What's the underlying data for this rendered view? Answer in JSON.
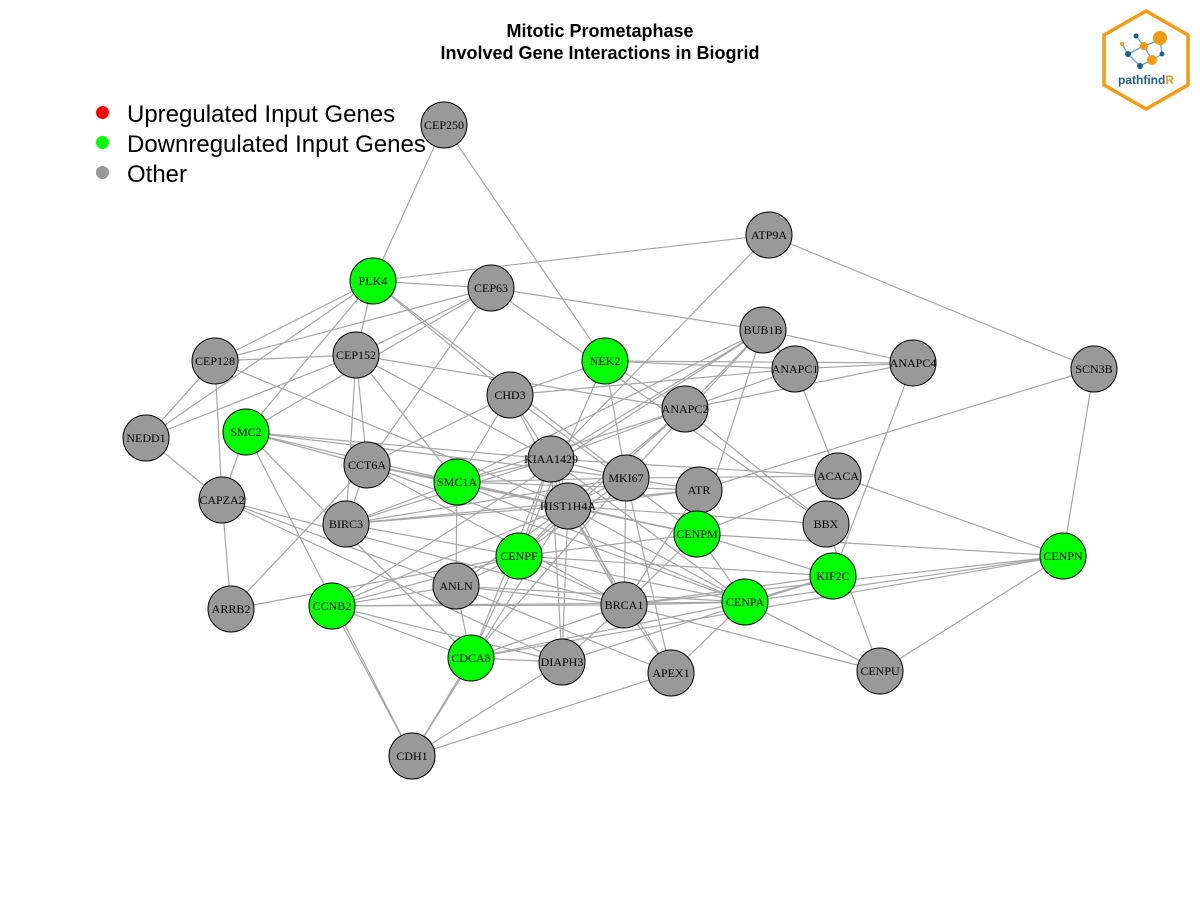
{
  "title": {
    "line1": "Mitotic Prometaphase",
    "line2": "Involved Gene Interactions in Biogrid"
  },
  "legend": [
    {
      "label": "Upregulated Input Genes",
      "color": "#ff0000"
    },
    {
      "label": "Downregulated Input Genes",
      "color": "#00ff00"
    },
    {
      "label": "Other",
      "color": "#999999"
    }
  ],
  "logo": {
    "text_main": "pathfind",
    "text_accent": "R",
    "border_color": "#f39c12",
    "accent_color": "#f39c12",
    "text_color": "#1f5f8b"
  },
  "colors": {
    "edge": "#a6a6a6",
    "other": "#999999",
    "down": "#00ff00",
    "up": "#ff0000"
  },
  "nodes": [
    {
      "id": "CEP250",
      "status": "other"
    },
    {
      "id": "ATP9A",
      "status": "other"
    },
    {
      "id": "PLK4",
      "status": "down"
    },
    {
      "id": "CEP63",
      "status": "other"
    },
    {
      "id": "BUB1B",
      "status": "other"
    },
    {
      "id": "NEK2",
      "status": "down"
    },
    {
      "id": "ANAPC1",
      "status": "other"
    },
    {
      "id": "ANAPC4",
      "status": "other"
    },
    {
      "id": "SCN3B",
      "status": "other"
    },
    {
      "id": "CEP128",
      "status": "other"
    },
    {
      "id": "CEP152",
      "status": "other"
    },
    {
      "id": "CHD3",
      "status": "other"
    },
    {
      "id": "ANAPC2",
      "status": "other"
    },
    {
      "id": "NEDD1",
      "status": "other"
    },
    {
      "id": "SMC2",
      "status": "down"
    },
    {
      "id": "KIAA1429",
      "status": "other"
    },
    {
      "id": "CCT6A",
      "status": "other"
    },
    {
      "id": "SMC1A",
      "status": "down"
    },
    {
      "id": "MKI67",
      "status": "other"
    },
    {
      "id": "ACACA",
      "status": "other"
    },
    {
      "id": "ATR",
      "status": "other"
    },
    {
      "id": "CAPZA2",
      "status": "other"
    },
    {
      "id": "HIST1H4A",
      "status": "other"
    },
    {
      "id": "BIRC3",
      "status": "other"
    },
    {
      "id": "BBX",
      "status": "other"
    },
    {
      "id": "CENPM",
      "status": "down"
    },
    {
      "id": "CENPF",
      "status": "down"
    },
    {
      "id": "CENPN",
      "status": "down"
    },
    {
      "id": "KIF2C",
      "status": "down"
    },
    {
      "id": "ANLN",
      "status": "other"
    },
    {
      "id": "CENPA",
      "status": "down"
    },
    {
      "id": "ARRB2",
      "status": "other"
    },
    {
      "id": "CCNB2",
      "status": "down"
    },
    {
      "id": "BRCA1",
      "status": "other"
    },
    {
      "id": "CDCA8",
      "status": "down"
    },
    {
      "id": "DIAPH3",
      "status": "other"
    },
    {
      "id": "APEX1",
      "status": "other"
    },
    {
      "id": "CENPU",
      "status": "other"
    },
    {
      "id": "CDH1",
      "status": "other"
    }
  ],
  "edges": [
    [
      "CEP250",
      "PLK4"
    ],
    [
      "CEP250",
      "NEK2"
    ],
    [
      "PLK4",
      "ATP9A"
    ],
    [
      "PLK4",
      "CEP63"
    ],
    [
      "PLK4",
      "CEP128"
    ],
    [
      "PLK4",
      "CEP152"
    ],
    [
      "PLK4",
      "NEDD1"
    ],
    [
      "PLK4",
      "SMC2"
    ],
    [
      "PLK4",
      "MKI67"
    ],
    [
      "PLK4",
      "CHD3"
    ],
    [
      "ATP9A",
      "SCN3B"
    ],
    [
      "ATP9A",
      "KIAA1429"
    ],
    [
      "CEP63",
      "CEP152"
    ],
    [
      "CEP63",
      "CEP128"
    ],
    [
      "CEP63",
      "BUB1B"
    ],
    [
      "CEP63",
      "BBX"
    ],
    [
      "CEP63",
      "SMC2"
    ],
    [
      "CEP63",
      "CCT6A"
    ],
    [
      "CEP128",
      "CEP152"
    ],
    [
      "CEP128",
      "NEDD1"
    ],
    [
      "CEP128",
      "HIST1H4A"
    ],
    [
      "CEP128",
      "CAPZA2"
    ],
    [
      "CEP152",
      "BIRC3"
    ],
    [
      "CEP152",
      "SMC1A"
    ],
    [
      "CEP152",
      "CCT6A"
    ],
    [
      "CEP152",
      "KIAA1429"
    ],
    [
      "CEP152",
      "ANAPC2"
    ],
    [
      "CEP152",
      "NEDD1"
    ],
    [
      "NEK2",
      "ANAPC1"
    ],
    [
      "NEK2",
      "ANAPC4"
    ],
    [
      "NEK2",
      "MKI67"
    ],
    [
      "NEK2",
      "CHD3"
    ],
    [
      "NEK2",
      "CENPF"
    ],
    [
      "NEK2",
      "ANAPC2"
    ],
    [
      "BUB1B",
      "ANAPC1"
    ],
    [
      "BUB1B",
      "ANAPC4"
    ],
    [
      "BUB1B",
      "ANAPC2"
    ],
    [
      "BUB1B",
      "KIAA1429"
    ],
    [
      "BUB1B",
      "MKI67"
    ],
    [
      "BUB1B",
      "CENPM"
    ],
    [
      "BUB1B",
      "CCNB2"
    ],
    [
      "BUB1B",
      "SMC1A"
    ],
    [
      "ANAPC1",
      "ANAPC4"
    ],
    [
      "ANAPC1",
      "ANAPC2"
    ],
    [
      "ANAPC1",
      "ACACA"
    ],
    [
      "ANAPC1",
      "CHD3"
    ],
    [
      "ANAPC4",
      "ANAPC2"
    ],
    [
      "ANAPC4",
      "KIF2C"
    ],
    [
      "SCN3B",
      "CENPN"
    ],
    [
      "SCN3B",
      "ATR"
    ],
    [
      "CHD3",
      "KIAA1429"
    ],
    [
      "CHD3",
      "CENPM"
    ],
    [
      "CHD3",
      "CCT6A"
    ],
    [
      "CHD3",
      "SMC1A"
    ],
    [
      "CHD3",
      "HIST1H4A"
    ],
    [
      "ANAPC2",
      "BBX"
    ],
    [
      "ANAPC2",
      "KIAA1429"
    ],
    [
      "ANAPC2",
      "HIST1H4A"
    ],
    [
      "ANAPC2",
      "CENPF"
    ],
    [
      "ANAPC2",
      "SMC1A"
    ],
    [
      "NEDD1",
      "CAPZA2"
    ],
    [
      "SMC2",
      "SMC1A"
    ],
    [
      "SMC2",
      "CCT6A"
    ],
    [
      "SMC2",
      "KIAA1429"
    ],
    [
      "SMC2",
      "CAPZA2"
    ],
    [
      "SMC2",
      "CDCA8"
    ],
    [
      "SMC2",
      "MKI67"
    ],
    [
      "CCT6A",
      "SMC1A"
    ],
    [
      "CCT6A",
      "BIRC3"
    ],
    [
      "CCT6A",
      "CENPM"
    ],
    [
      "CCT6A",
      "ARRB2"
    ],
    [
      "CCT6A",
      "CENPA"
    ],
    [
      "CCT6A",
      "BRCA1"
    ],
    [
      "CCT6A",
      "HIST1H4A"
    ],
    [
      "KIAA1429",
      "SMC1A"
    ],
    [
      "KIAA1429",
      "MKI67"
    ],
    [
      "KIAA1429",
      "HIST1H4A"
    ],
    [
      "KIAA1429",
      "CENPF"
    ],
    [
      "KIAA1429",
      "BRCA1"
    ],
    [
      "KIAA1429",
      "ACACA"
    ],
    [
      "KIAA1429",
      "CDCA8"
    ],
    [
      "KIAA1429",
      "DIAPH3"
    ],
    [
      "KIAA1429",
      "CENPA"
    ],
    [
      "KIAA1429",
      "BIRC3"
    ],
    [
      "SMC1A",
      "MKI67"
    ],
    [
      "SMC1A",
      "HIST1H4A"
    ],
    [
      "SMC1A",
      "ANLN"
    ],
    [
      "SMC1A",
      "CENPM"
    ],
    [
      "SMC1A",
      "BIRC3"
    ],
    [
      "SMC1A",
      "ATR"
    ],
    [
      "SMC1A",
      "CENPA"
    ],
    [
      "MKI67",
      "HIST1H4A"
    ],
    [
      "MKI67",
      "ATR"
    ],
    [
      "MKI67",
      "CENPF"
    ],
    [
      "MKI67",
      "BRCA1"
    ],
    [
      "MKI67",
      "APEX1"
    ],
    [
      "MKI67",
      "BIRC3"
    ],
    [
      "MKI67",
      "CDCA8"
    ],
    [
      "MKI67",
      "ACACA"
    ],
    [
      "ATR",
      "HIST1H4A"
    ],
    [
      "ATR",
      "CENPM"
    ],
    [
      "ATR",
      "BRCA1"
    ],
    [
      "ATR",
      "BIRC3"
    ],
    [
      "HIST1H4A",
      "CENPF"
    ],
    [
      "HIST1H4A",
      "BRCA1"
    ],
    [
      "HIST1H4A",
      "CENPM"
    ],
    [
      "HIST1H4A",
      "DIAPH3"
    ],
    [
      "HIST1H4A",
      "BIRC3"
    ],
    [
      "HIST1H4A",
      "CENPA"
    ],
    [
      "HIST1H4A",
      "ANLN"
    ],
    [
      "HIST1H4A",
      "APEX1"
    ],
    [
      "HIST1H4A",
      "BBX"
    ],
    [
      "HIST1H4A",
      "CCNB2"
    ],
    [
      "HIST1H4A",
      "CDH1"
    ],
    [
      "CENPM",
      "CENPN"
    ],
    [
      "CENPM",
      "CENPA"
    ],
    [
      "CENPM",
      "KIF2C"
    ],
    [
      "CENPM",
      "CENPF"
    ],
    [
      "CENPM",
      "ACACA"
    ],
    [
      "CENPM",
      "BRCA1"
    ],
    [
      "CENPF",
      "BRCA1"
    ],
    [
      "CENPF",
      "CENPA"
    ],
    [
      "CENPF",
      "ANLN"
    ],
    [
      "CENPF",
      "ARRB2"
    ],
    [
      "CENPF",
      "CDCA8"
    ],
    [
      "CENPF",
      "CCNB2"
    ],
    [
      "CAPZA2",
      "ARRB2"
    ],
    [
      "CAPZA2",
      "BRCA1"
    ],
    [
      "CAPZA2",
      "ANLN"
    ],
    [
      "CAPZA2",
      "DIAPH3"
    ],
    [
      "BIRC3",
      "CENPF"
    ],
    [
      "ANLN",
      "BRCA1"
    ],
    [
      "ANLN",
      "APEX1"
    ],
    [
      "ANLN",
      "CDCA8"
    ],
    [
      "ANLN",
      "CENPA"
    ],
    [
      "ANLN",
      "CCNB2"
    ],
    [
      "CENPA",
      "CENPN"
    ],
    [
      "CENPA",
      "CENPU"
    ],
    [
      "CENPA",
      "CDCA8"
    ],
    [
      "CENPA",
      "BRCA1"
    ],
    [
      "CENPA",
      "APEX1"
    ],
    [
      "CENPA",
      "KIF2C"
    ],
    [
      "CENPA",
      "CCNB2"
    ],
    [
      "KIF2C",
      "CENPF"
    ],
    [
      "KIF2C",
      "BRCA1"
    ],
    [
      "KIF2C",
      "DIAPH3"
    ],
    [
      "CENPN",
      "CENPU"
    ],
    [
      "CENPN",
      "BRCA1"
    ],
    [
      "CENPN",
      "CDCA8"
    ],
    [
      "BRCA1",
      "CDCA8"
    ],
    [
      "BRCA1",
      "APEX1"
    ],
    [
      "BRCA1",
      "DIAPH3"
    ],
    [
      "BRCA1",
      "CENPU"
    ],
    [
      "BRCA1",
      "CCNB2"
    ],
    [
      "CCNB2",
      "CDCA8"
    ],
    [
      "CCNB2",
      "CDH1"
    ],
    [
      "CCNB2",
      "DIAPH3"
    ],
    [
      "CDCA8",
      "DIAPH3"
    ],
    [
      "CDCA8",
      "CDH1"
    ],
    [
      "DIAPH3",
      "CDH1"
    ],
    [
      "APEX1",
      "CDH1"
    ],
    [
      "BBX",
      "CENPU"
    ],
    [
      "ACACA",
      "CENPN"
    ],
    [
      "SMC2",
      "CDH1"
    ]
  ]
}
